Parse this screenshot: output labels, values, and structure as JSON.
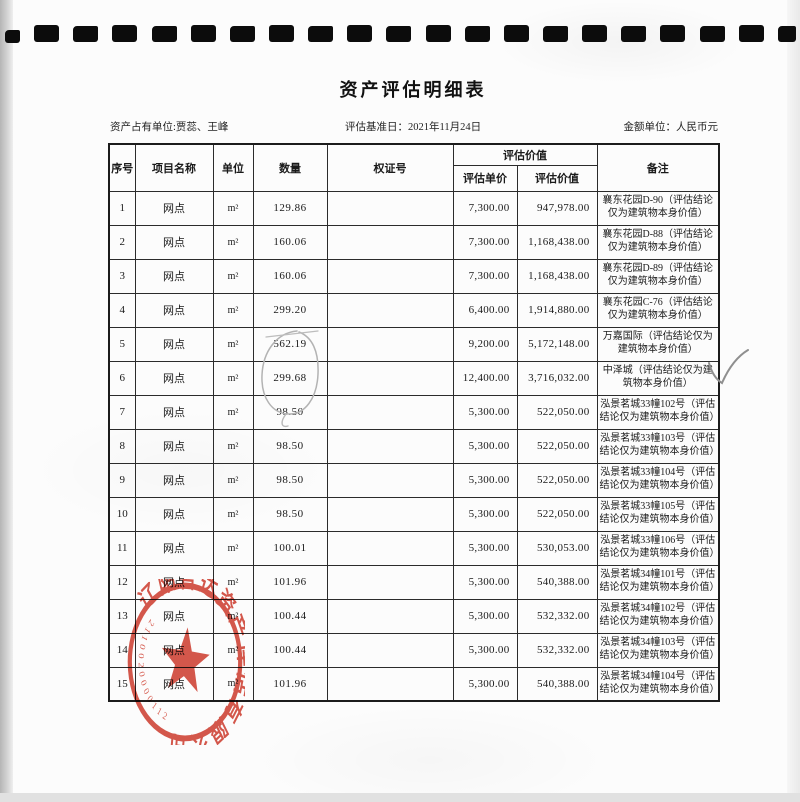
{
  "page": {
    "title": "资产评估明细表",
    "meta": {
      "owner": "资产占有单位:贾蕊、王峰",
      "base_date": "评估基准日：2021年11月24日",
      "currency": "金额单位：人民币元"
    }
  },
  "binding": {
    "hole_count": 21
  },
  "table": {
    "headers": {
      "seq": "序号",
      "name": "项目名称",
      "unit": "单位",
      "qty": "数量",
      "cert": "权证号",
      "value_group": "评估价值",
      "unit_price": "评估单价",
      "value": "评估价值",
      "remark": "备注"
    },
    "rows": [
      {
        "seq": "1",
        "name": "网点",
        "unit": "m²",
        "qty": "129.86",
        "cert": "",
        "price": "7,300.00",
        "value": "947,978.00",
        "remark": "襄东花园D-90（评估结论仅为建筑物本身价值）"
      },
      {
        "seq": "2",
        "name": "网点",
        "unit": "m²",
        "qty": "160.06",
        "cert": "",
        "price": "7,300.00",
        "value": "1,168,438.00",
        "remark": "襄东花园D-88（评估结论仅为建筑物本身价值）"
      },
      {
        "seq": "3",
        "name": "网点",
        "unit": "m²",
        "qty": "160.06",
        "cert": "",
        "price": "7,300.00",
        "value": "1,168,438.00",
        "remark": "襄东花园D-89（评估结论仅为建筑物本身价值）"
      },
      {
        "seq": "4",
        "name": "网点",
        "unit": "m²",
        "qty": "299.20",
        "cert": "",
        "price": "6,400.00",
        "value": "1,914,880.00",
        "remark": "襄东花园C-76（评估结论仅为建筑物本身价值）"
      },
      {
        "seq": "5",
        "name": "网点",
        "unit": "m²",
        "qty": "562.19",
        "cert": "",
        "price": "9,200.00",
        "value": "5,172,148.00",
        "remark": "万嘉国际（评估结论仅为建筑物本身价值）"
      },
      {
        "seq": "6",
        "name": "网点",
        "unit": "m²",
        "qty": "299.68",
        "cert": "",
        "price": "12,400.00",
        "value": "3,716,032.00",
        "remark": "中泽城（评估结论仅为建筑物本身价值）"
      },
      {
        "seq": "7",
        "name": "网点",
        "unit": "m²",
        "qty": "98.50",
        "cert": "",
        "price": "5,300.00",
        "value": "522,050.00",
        "remark": "泓景茗城33幢102号（评估结论仅为建筑物本身价值）"
      },
      {
        "seq": "8",
        "name": "网点",
        "unit": "m²",
        "qty": "98.50",
        "cert": "",
        "price": "5,300.00",
        "value": "522,050.00",
        "remark": "泓景茗城33幢103号（评估结论仅为建筑物本身价值）"
      },
      {
        "seq": "9",
        "name": "网点",
        "unit": "m²",
        "qty": "98.50",
        "cert": "",
        "price": "5,300.00",
        "value": "522,050.00",
        "remark": "泓景茗城33幢104号（评估结论仅为建筑物本身价值）"
      },
      {
        "seq": "10",
        "name": "网点",
        "unit": "m²",
        "qty": "98.50",
        "cert": "",
        "price": "5,300.00",
        "value": "522,050.00",
        "remark": "泓景茗城33幢105号（评估结论仅为建筑物本身价值）"
      },
      {
        "seq": "11",
        "name": "网点",
        "unit": "m²",
        "qty": "100.01",
        "cert": "",
        "price": "5,300.00",
        "value": "530,053.00",
        "remark": "泓景茗城33幢106号（评估结论仅为建筑物本身价值）"
      },
      {
        "seq": "12",
        "name": "网点",
        "unit": "m²",
        "qty": "101.96",
        "cert": "",
        "price": "5,300.00",
        "value": "540,388.00",
        "remark": "泓景茗城34幢101号（评估结论仅为建筑物本身价值）"
      },
      {
        "seq": "13",
        "name": "网点",
        "unit": "m²",
        "qty": "100.44",
        "cert": "",
        "price": "5,300.00",
        "value": "532,332.00",
        "remark": "泓景茗城34幢102号（评估结论仅为建筑物本身价值）"
      },
      {
        "seq": "14",
        "name": "网点",
        "unit": "m²",
        "qty": "100.44",
        "cert": "",
        "price": "5,300.00",
        "value": "532,332.00",
        "remark": "泓景茗城34幢103号（评估结论仅为建筑物本身价值）"
      },
      {
        "seq": "15",
        "name": "网点",
        "unit": "m²",
        "qty": "101.96",
        "cert": "",
        "price": "5,300.00",
        "value": "540,388.00",
        "remark": "泓景茗城34幢104号（评估结论仅为建筑物本身价值）"
      }
    ]
  },
  "stamp": {
    "company": "辽阳智达资产评估有限公司",
    "number": "2110020000112",
    "color": "#cf3a2c"
  }
}
